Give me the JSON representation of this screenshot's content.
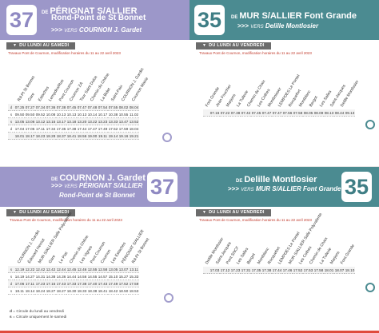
{
  "panels": [
    {
      "id": "tl",
      "line": "37",
      "de": "DE",
      "origin": "PÉRIGNAT S/ALLIER",
      "origin2": "Rond-Point de St Bonnet",
      "vers_label": "VERS",
      "dest": "COURNON J. Gardet",
      "period": "DU LUNDI AU SAMEDI",
      "notice": "Travaux Pont de Cournon, modification horaires du 11 au 22 avril 2023",
      "stops": [
        "Rd-Pt St Bonnet",
        "Gare",
        "Estaches",
        "Lempdes/Rue",
        "Pont Cournon",
        "Cournon ZA",
        "Tour Saint Dulce",
        "Chemin du Chêne",
        "La Bidet",
        "Saint-Paix",
        "COURNON J. Gardet",
        "Cournon Mairie"
      ],
      "rows": [
        {
          "lab": "d",
          "times": [
            "07.25",
            "07.27",
            "07.34",
            "07.36",
            "07.38",
            "07.45",
            "07.47",
            "07.48",
            "07.54",
            "07.55",
            "08.02",
            "08.04"
          ]
        },
        {
          "lab": "s",
          "times": [
            "09.50",
            "09.50",
            "09.52",
            "10.08",
            "10.13",
            "10.13",
            "10.13",
            "10.14",
            "10.17",
            "10.38",
            "10.55",
            "11.02"
          ]
        },
        {
          "lab": "s",
          "times": [
            "13.05",
            "13.06",
            "13.12",
            "13.15",
            "13.17",
            "13.18",
            "13.20",
            "13.22",
            "13.23",
            "13.33",
            "13.47",
            "13.52"
          ]
        },
        {
          "lab": "d",
          "times": [
            "17.04",
            "17.05",
            "17.11",
            "17.34",
            "17.35",
            "17.38",
            "17.44",
            "17.47",
            "17.49",
            "17.52",
            "17.59",
            "18.04"
          ]
        },
        {
          "lab": "",
          "times": [
            "18.01",
            "18.17",
            "18.23",
            "18.28",
            "18.37",
            "18.41",
            "18.56",
            "19.00",
            "19.11",
            "19.14",
            "19.16",
            "19.21"
          ]
        }
      ]
    },
    {
      "id": "tr",
      "line": "35",
      "de": "DE",
      "origin": "MUR S/ALLIER Font Grande",
      "origin2": "",
      "vers_label": "VERS",
      "dest": "Delille Montlosier",
      "period": "DU LUNDI AU VENDREDI",
      "notice": "Travaux Pont de Cournon, modification horaires du 11 au 22 avril 2023",
      "stops": [
        "Font Grande",
        "Jean Fouchier",
        "Marjons",
        "La Tuilerie",
        "Chemin de Chaix",
        "Les Cothes",
        "Montboisser",
        "LEMPDES Le Pontel",
        "Rocquefort",
        "Montblanc",
        "Bergot",
        "Les Salles",
        "Saint-Jacques",
        "Delille Montlosier"
      ],
      "rows": [
        {
          "lab": "",
          "times": [
            "07.16",
            "07.22",
            "07.38",
            "07.42",
            "07.45",
            "07.47",
            "07.47",
            "07.56",
            "07.58",
            "08.05",
            "08.09",
            "08.13",
            "08.44",
            "09.13"
          ]
        }
      ]
    },
    {
      "id": "bl",
      "line": "37",
      "de": "DE",
      "origin": "COURNON J. Gardet",
      "origin2": "",
      "vers_label": "VERS",
      "dest": "PÉRIGNAT S/ALLIER",
      "dest2": "Rond-Point de St Bonnet",
      "period": "DU LUNDI AU SAMEDI",
      "notice": "Travaux Pont de Cournon, modification horaires du 11 au 22 avril 2023",
      "stops": [
        "COURNON J. Gardet",
        "Édouard Herriot",
        "MUR S/ALLIER Salle Polyvalente",
        "Gare",
        "Le Piat",
        "Chemin du Chêne",
        "Les Vignes",
        "Pont Cournon",
        "Cournon",
        "Les Estaches",
        "PÉRIGNAT S/ALLIER",
        "Rd-Pt St Bonnet"
      ],
      "rows": [
        {
          "lab": "s",
          "times": [
            "12.19",
            "12.22",
            "12.42",
            "12.42",
            "12.44",
            "12.45",
            "12.46",
            "12.55",
            "12.58",
            "13.05",
            "13.07",
            "13.11"
          ]
        },
        {
          "lab": "s",
          "times": [
            "14.19",
            "14.27",
            "14.31",
            "14.38",
            "14.36",
            "14.44",
            "14.56",
            "14.55",
            "14.57",
            "15.10",
            "15.27",
            "15.33"
          ]
        },
        {
          "lab": "d",
          "times": [
            "17.06",
            "17.11",
            "17.23",
            "17.15",
            "17.43",
            "17.33",
            "17.38",
            "17.40",
            "17.43",
            "17.49",
            "17.52",
            "17.59"
          ]
        },
        {
          "lab": "s",
          "times": [
            "18.11",
            "18.14",
            "18.24",
            "18.27",
            "18.27",
            "18.30",
            "18.33",
            "18.38",
            "18.41",
            "18.42",
            "18.50",
            "18.53"
          ]
        }
      ]
    },
    {
      "id": "br",
      "line": "35",
      "de": "DE",
      "origin": "Delille Montlosier",
      "origin2": "",
      "vers_label": "VERS",
      "dest": "MUR S/ALLIER Font Grande",
      "period": "DU LUNDI AU VENDREDI",
      "notice": "Travaux Pont de Cournon, modification horaires du 11 au 22 avril 2023",
      "stops": [
        "Delille Montlosier",
        "Saint-Jacques",
        "Pont SNCF",
        "Les Salles",
        "Bergot",
        "Montblanc",
        "Rocquefort",
        "LEMPDES Le Pontel",
        "MUR S/ALLIER Salle Polyvalente",
        "Les Cothes",
        "Chemin de Chaix",
        "La Tuilerie",
        "Marjons",
        "Font Grande"
      ],
      "rows": [
        {
          "lab": "",
          "times": [
            "17.03",
            "17.12",
            "17.23",
            "17.31",
            "17.35",
            "17.38",
            "17.44",
            "17.46",
            "17.52",
            "17.53",
            "17.58",
            "18.01",
            "18.07",
            "18.10"
          ]
        }
      ]
    }
  ],
  "legend": [
    {
      "key": "d",
      "text": "Circule du lundi au vendredi"
    },
    {
      "key": "s",
      "text": "Circule uniquement le samedi"
    }
  ],
  "colors": {
    "purple": "#9c97c9",
    "teal": "#4b8b91",
    "red": "#e04a3c"
  }
}
